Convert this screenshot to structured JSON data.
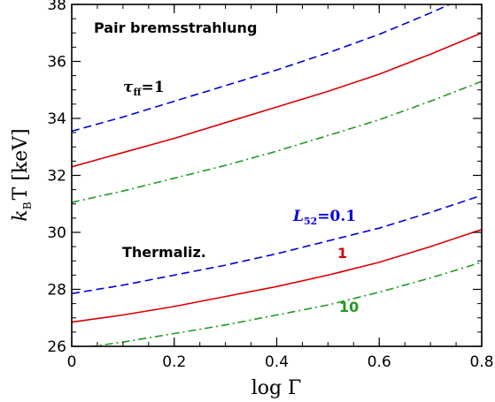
{
  "chart_data": {
    "type": "line",
    "xlabel_text": "log Γ",
    "ylabel_main": "k",
    "ylabel_sub": "B",
    "ylabel_rest": "T [keV]",
    "xlim": [
      0,
      0.8
    ],
    "ylim": [
      26,
      38
    ],
    "x_ticks": [
      0,
      0.2,
      0.4,
      0.6,
      0.8
    ],
    "x_tick_labels": [
      "0",
      "0.2",
      "0.4",
      "0.6",
      "0.8"
    ],
    "y_ticks": [
      26,
      28,
      30,
      32,
      34,
      36,
      38
    ],
    "y_tick_labels": [
      "26",
      "28",
      "30",
      "32",
      "34",
      "36",
      "38"
    ],
    "grid": false,
    "annotations": {
      "pair": "Pair bremsstrahlung",
      "tau_main": "τ",
      "tau_sub": "ff",
      "tau_eq": "=1",
      "thermaliz": "Thermaliz.",
      "L_main": "L",
      "L_sub": "52",
      "L_eq": "=0.1",
      "one": "1",
      "ten": "10"
    },
    "colors": {
      "blue": "#0000dd",
      "red": "#dd0000",
      "green": "#229922"
    },
    "series": [
      {
        "color": "blue",
        "style": "dashed",
        "x": [
          0,
          0.1,
          0.2,
          0.3,
          0.4,
          0.5,
          0.6,
          0.7,
          0.8
        ],
        "y": [
          33.55,
          34.05,
          34.6,
          35.15,
          35.7,
          36.3,
          36.95,
          37.7,
          38.5
        ]
      },
      {
        "color": "red",
        "style": "solid",
        "x": [
          0,
          0.1,
          0.2,
          0.3,
          0.4,
          0.5,
          0.6,
          0.7,
          0.8
        ],
        "y": [
          32.3,
          32.8,
          33.3,
          33.85,
          34.4,
          34.95,
          35.55,
          36.25,
          37.0
        ]
      },
      {
        "color": "green",
        "style": "dashdot",
        "x": [
          0,
          0.1,
          0.2,
          0.3,
          0.4,
          0.5,
          0.6,
          0.7,
          0.8
        ],
        "y": [
          31.05,
          31.45,
          31.9,
          32.35,
          32.85,
          33.4,
          33.95,
          34.6,
          35.3
        ]
      },
      {
        "color": "blue",
        "style": "dashed",
        "x": [
          0,
          0.1,
          0.2,
          0.3,
          0.4,
          0.5,
          0.6,
          0.7,
          0.8
        ],
        "y": [
          27.85,
          28.15,
          28.5,
          28.85,
          29.25,
          29.7,
          30.15,
          30.7,
          31.3
        ]
      },
      {
        "color": "red",
        "style": "solid",
        "x": [
          0,
          0.1,
          0.2,
          0.3,
          0.4,
          0.5,
          0.6,
          0.7,
          0.8
        ],
        "y": [
          26.85,
          27.1,
          27.4,
          27.75,
          28.1,
          28.5,
          28.95,
          29.5,
          30.1
        ]
      },
      {
        "color": "green",
        "style": "dashdot",
        "x": [
          0,
          0.1,
          0.2,
          0.3,
          0.4,
          0.5,
          0.6,
          0.7,
          0.8
        ],
        "y": [
          25.9,
          26.15,
          26.45,
          26.75,
          27.1,
          27.45,
          27.9,
          28.4,
          28.95
        ]
      }
    ]
  }
}
